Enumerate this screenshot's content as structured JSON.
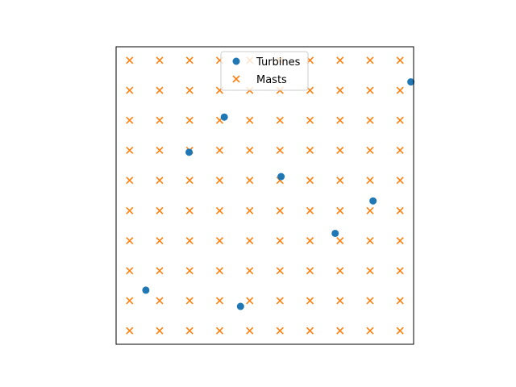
{
  "chart_data": {
    "type": "scatter",
    "title": "",
    "xlabel": "",
    "ylabel": "",
    "xlim": [
      -0.05,
      1.05
    ],
    "ylim": [
      -0.05,
      1.05
    ],
    "grid": false,
    "axes_ticks_visible": false,
    "legend_position": "top-center",
    "series": [
      {
        "name": "Turbines",
        "marker": "circle",
        "color": "#1f77b4",
        "points": [
          {
            "x": 0.06,
            "y": 0.15
          },
          {
            "x": 0.22,
            "y": 0.66
          },
          {
            "x": 0.35,
            "y": 0.79
          },
          {
            "x": 0.41,
            "y": 0.09
          },
          {
            "x": 0.56,
            "y": 0.57
          },
          {
            "x": 0.76,
            "y": 0.36
          },
          {
            "x": 0.9,
            "y": 0.48
          },
          {
            "x": 1.04,
            "y": 0.92
          }
        ]
      },
      {
        "name": "Masts",
        "marker": "x",
        "color": "#ff7f0e",
        "grid_x": [
          0.0,
          0.111,
          0.222,
          0.333,
          0.444,
          0.556,
          0.667,
          0.778,
          0.889,
          1.0
        ],
        "grid_y": [
          0.0,
          0.111,
          0.222,
          0.333,
          0.444,
          0.556,
          0.667,
          0.778,
          0.889,
          1.0
        ]
      }
    ]
  }
}
